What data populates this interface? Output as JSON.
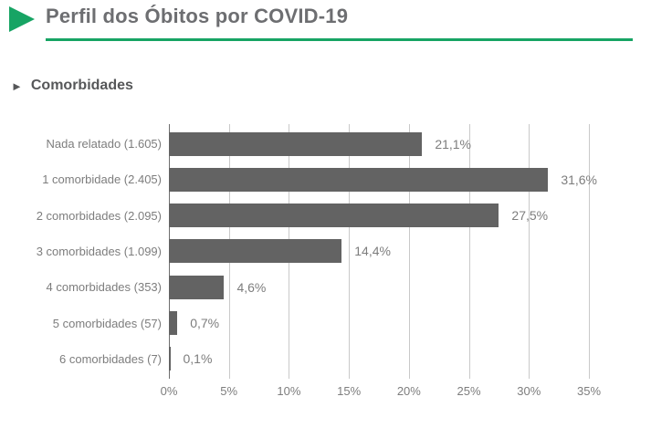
{
  "header": {
    "title": "Perfil dos Óbitos por COVID-19",
    "accent_color": "#17a464"
  },
  "section": {
    "marker": "►",
    "label": "Comorbidades"
  },
  "chart_data": {
    "type": "bar",
    "orientation": "horizontal",
    "title": "Comorbidades",
    "categories": [
      "Nada relatado (1.605)",
      "1 comorbidade (2.405)",
      "2 comorbidades (2.095)",
      "3 comorbidades (1.099)",
      "4 comorbidades (353)",
      "5 comorbidades (57)",
      "6 comorbidades (7)"
    ],
    "counts": [
      1605,
      2405,
      2095,
      1099,
      353,
      57,
      7
    ],
    "values": [
      21.1,
      31.6,
      27.5,
      14.4,
      4.6,
      0.7,
      0.1
    ],
    "value_labels": [
      "21,1%",
      "31,6%",
      "27,5%",
      "14,4%",
      "4,6%",
      "0,7%",
      "0,1%"
    ],
    "x_tick_values": [
      0,
      5,
      10,
      15,
      20,
      25,
      30,
      35
    ],
    "x_tick_labels": [
      "0%",
      "5%",
      "10%",
      "15%",
      "20%",
      "25%",
      "30%",
      "35%"
    ],
    "xlim": [
      0,
      39.2
    ],
    "grid": true,
    "legend": false,
    "bar_color": "#636363",
    "gridline_color": "#c9c9c9",
    "label_color": "#7d7d7d"
  }
}
